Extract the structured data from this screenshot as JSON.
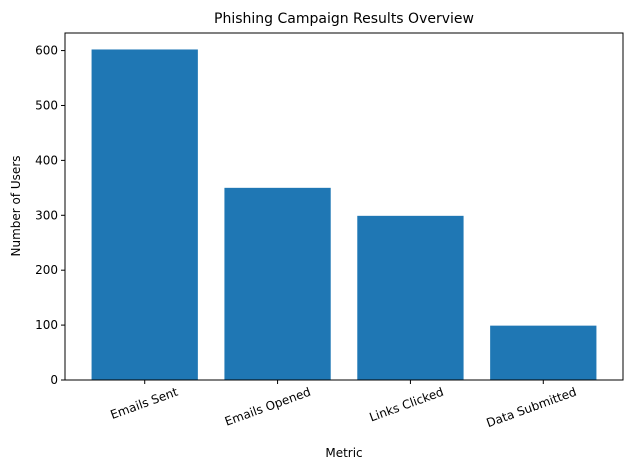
{
  "chart_data": {
    "type": "bar",
    "title": "Phishing Campaign Results Overview",
    "xlabel": "Metric",
    "ylabel": "Number of Users",
    "categories": [
      "Emails Sent",
      "Emails Opened",
      "Links Clicked",
      "Data Submitted"
    ],
    "values": [
      602,
      350,
      299,
      99
    ],
    "ylim": [
      0,
      632
    ],
    "yticks": [
      0,
      100,
      200,
      300,
      400,
      500,
      600
    ],
    "grid": false,
    "bar_color": "#1f77b4"
  }
}
